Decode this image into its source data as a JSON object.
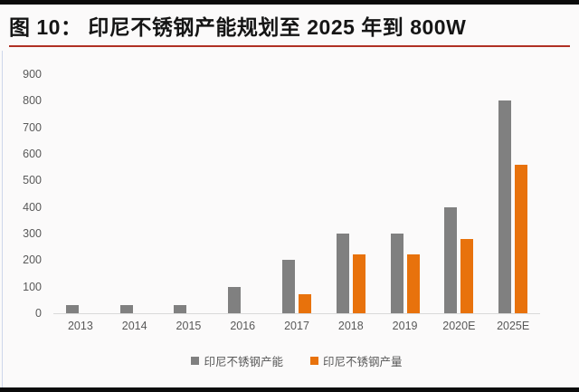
{
  "header": {
    "title": "图 10：  印尼不锈钢产能规划至 2025 年到 800W"
  },
  "colors": {
    "capacity_gray": "#808080",
    "production_orange": "#e8720c",
    "title_rule_red": "#b03024",
    "axis_text": "#595959",
    "page_frame_black": "#0b0b0b"
  },
  "chart_data": {
    "type": "bar",
    "categories": [
      "2013",
      "2014",
      "2015",
      "2016",
      "2017",
      "2018",
      "2019",
      "2020E",
      "2025E"
    ],
    "series": [
      {
        "name": "印尼不锈钢产能",
        "color": "#808080",
        "values": [
          30,
          30,
          30,
          100,
          200,
          300,
          300,
          400,
          800
        ]
      },
      {
        "name": "印尼不锈钢产量",
        "color": "#e8720c",
        "values": [
          0,
          0,
          0,
          0,
          70,
          220,
          220,
          280,
          560
        ]
      }
    ],
    "title": "印尼不锈钢产能规划至 2025 年到 800W",
    "xlabel": "",
    "ylabel": "",
    "ylim": [
      0,
      900
    ],
    "yticks": [
      0,
      100,
      200,
      300,
      400,
      500,
      600,
      700,
      800,
      900
    ],
    "grid": false,
    "legend_position": "bottom"
  }
}
